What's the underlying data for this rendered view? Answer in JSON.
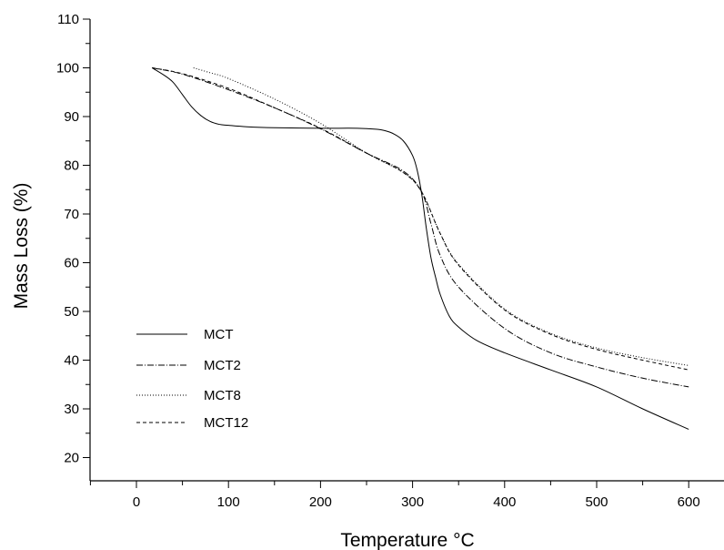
{
  "chart_data": {
    "type": "line",
    "title": "",
    "xlabel": "Temperature °C",
    "ylabel": "Mass Loss (%)",
    "xlim": [
      -50,
      650
    ],
    "ylim": [
      15,
      110
    ],
    "x_ticks": [
      0,
      100,
      200,
      300,
      400,
      500,
      600
    ],
    "y_ticks": [
      20,
      30,
      40,
      50,
      60,
      70,
      80,
      90,
      100,
      110
    ],
    "grid": false,
    "legend_position": "left-bottom",
    "series": [
      {
        "name": "MCT",
        "style": "solid",
        "x": [
          17,
          30,
          40,
          50,
          60,
          70,
          80,
          90,
          100,
          120,
          150,
          200,
          240,
          260,
          270,
          280,
          290,
          300,
          305,
          310,
          315,
          320,
          325,
          330,
          340,
          350,
          370,
          400,
          450,
          500,
          550,
          600
        ],
        "y": [
          100,
          98.5,
          97,
          94.5,
          92,
          90.2,
          89,
          88.4,
          88.2,
          87.9,
          87.7,
          87.6,
          87.6,
          87.4,
          87.1,
          86.4,
          85,
          82,
          79,
          74,
          67,
          61,
          57,
          53.5,
          49,
          46.8,
          44,
          41.5,
          38,
          34.5,
          30,
          25.8
        ]
      },
      {
        "name": "MCT2",
        "style": "dashdot",
        "x": [
          17,
          50,
          100,
          150,
          200,
          250,
          290,
          310,
          320,
          330,
          350,
          400,
          450,
          500,
          550,
          600
        ],
        "y": [
          100,
          98.7,
          95.5,
          91.8,
          87.5,
          82.5,
          78.8,
          74.5,
          68,
          61.5,
          55,
          46.5,
          41.5,
          38.6,
          36.3,
          34.5
        ]
      },
      {
        "name": "MCT8",
        "style": "dotted",
        "x": [
          62,
          80,
          100,
          150,
          200,
          250,
          290,
          310,
          330,
          350,
          400,
          450,
          500,
          550,
          600
        ],
        "y": [
          100,
          99,
          97.8,
          93.6,
          88.6,
          82.5,
          78.5,
          74.5,
          66,
          59.7,
          50.5,
          45.5,
          42.5,
          40.5,
          38.9
        ]
      },
      {
        "name": "MCT12",
        "style": "dashed",
        "x": [
          17,
          50,
          100,
          150,
          200,
          250,
          290,
          310,
          330,
          350,
          400,
          450,
          500,
          550,
          600
        ],
        "y": [
          100,
          98.8,
          95.8,
          91.8,
          87.6,
          82.5,
          78.5,
          74.5,
          66,
          59.5,
          50.3,
          45.3,
          42.2,
          40,
          38
        ]
      }
    ]
  }
}
